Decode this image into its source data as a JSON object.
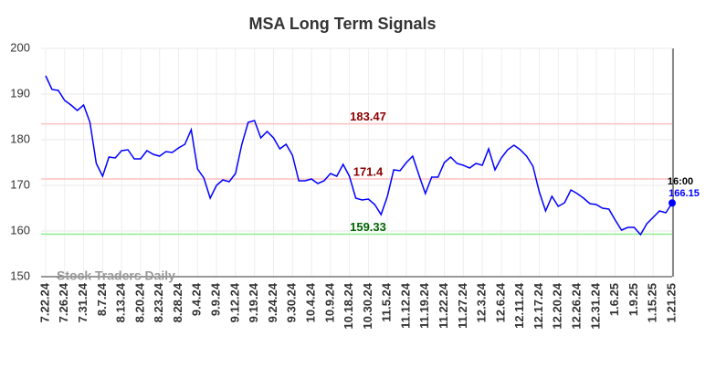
{
  "chart_data": {
    "type": "line",
    "title": "MSA Long Term Signals",
    "watermark": "Stock Traders Daily",
    "categories": [
      "7.22.24",
      null,
      null,
      "7.26.24",
      null,
      null,
      "7.31.24",
      null,
      null,
      "8.7.24",
      null,
      null,
      "8.13.24",
      null,
      null,
      "8.20.24",
      null,
      null,
      "8.23.24",
      null,
      null,
      "8.28.24",
      null,
      null,
      "9.4.24",
      null,
      null,
      "9.9.24",
      null,
      null,
      "9.12.24",
      null,
      null,
      "9.19.24",
      null,
      null,
      "9.24.24",
      null,
      null,
      "9.30.24",
      null,
      null,
      "10.4.24",
      null,
      null,
      "10.9.24",
      null,
      null,
      "10.18.24",
      null,
      null,
      "10.30.24",
      null,
      null,
      "11.5.24",
      null,
      null,
      "11.12.24",
      null,
      null,
      "11.19.24",
      null,
      null,
      "11.22.24",
      null,
      null,
      "11.27.24",
      null,
      null,
      "12.3.24",
      null,
      null,
      "12.6.24",
      null,
      null,
      "12.11.24",
      null,
      null,
      "12.17.24",
      null,
      null,
      "12.20.24",
      null,
      null,
      "12.26.24",
      null,
      null,
      "12.31.24",
      null,
      null,
      "1.6.25",
      null,
      null,
      "1.9.25",
      null,
      null,
      "1.15.25",
      null,
      null,
      "1.21.25"
    ],
    "values": [
      194,
      191,
      190.8,
      188.6,
      187.6,
      186.4,
      187.6,
      183.8,
      174.8,
      172,
      176.2,
      176,
      177.6,
      177.8,
      175.8,
      175.8,
      177.6,
      176.8,
      176.4,
      177.4,
      177.2,
      178.2,
      179,
      182.2,
      173.6,
      171.6,
      167.2,
      170,
      171.2,
      170.8,
      172.6,
      179,
      183.8,
      184.2,
      180.4,
      181.8,
      180.4,
      178,
      179,
      176.6,
      171,
      171,
      171.4,
      170.4,
      171,
      172.6,
      172,
      174.6,
      172,
      167.2,
      166.8,
      167,
      165.8,
      163.6,
      167.6,
      173.4,
      173.2,
      175,
      176.4,
      172.2,
      168.2,
      171.8,
      171.8,
      175,
      176.2,
      174.8,
      174.4,
      173.8,
      174.8,
      174.4,
      178,
      173.4,
      176,
      177.8,
      178.8,
      177.8,
      176.4,
      174.2,
      168.6,
      164.4,
      167.6,
      165.4,
      166.2,
      169,
      168.2,
      167.2,
      166,
      165.8,
      165,
      164.8,
      162.4,
      160.2,
      160.8,
      160.8,
      159.2,
      161.6,
      163,
      164.4,
      164,
      166.15
    ],
    "color": "#0000ff",
    "last_time": "16:00",
    "ylim": [
      150,
      200
    ],
    "yticks": [
      150,
      160,
      170,
      180,
      190,
      200
    ],
    "grid": true,
    "hlines": [
      {
        "value": 183.47,
        "color": "#ffc0c0",
        "label_color": "#8b0000"
      },
      {
        "value": 171.4,
        "color": "#ffc0c0",
        "label_color": "#8b0000"
      },
      {
        "value": 159.33,
        "color": "#90ee90",
        "label_color": "#006400"
      }
    ]
  }
}
